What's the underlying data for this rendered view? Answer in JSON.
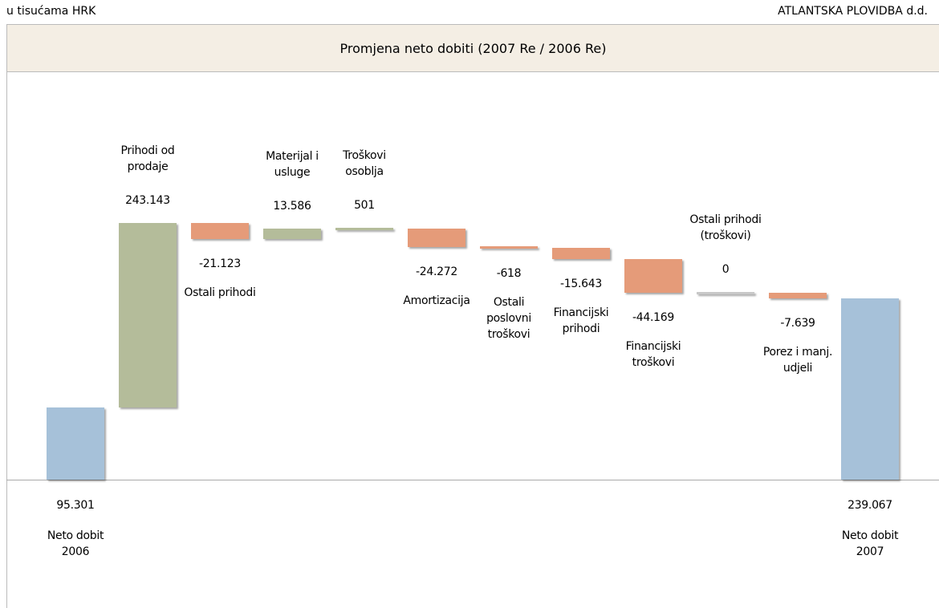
{
  "header": {
    "left": "u tisućama HRK",
    "right": "ATLANTSKA PLOVIDBA d.d."
  },
  "chart_data": {
    "type": "waterfall",
    "title": "Promjena neto dobiti (2007 Re / 2006 Re)",
    "categories": [
      "Neto dobit\n2006",
      "Prihodi od\nprodaje",
      "Ostali prihodi",
      "Materijal i\nusluge",
      "Troškovi\nosoblja",
      "Amortizacija",
      "Ostali\nposlovni\ntroškovi",
      "Financijski\nprihodi",
      "Financijski\ntroškovi",
      "Ostali prihodi\n(troškovi)",
      "Porez i manj.\nudjeli",
      "Neto dobit\n2007"
    ],
    "values": [
      95301,
      243143,
      -21123,
      13586,
      501,
      -24272,
      -618,
      -15643,
      -44169,
      0,
      -7639,
      239067
    ],
    "value_labels": [
      "95.301",
      "243.143",
      "-21.123",
      "13.586",
      "501",
      "-24.272",
      "-618",
      "-15.643",
      "-44.169",
      "0",
      "-7.639",
      "239.067"
    ],
    "colors": [
      "#a6c1d9",
      "#b4bc9a",
      "#e59b79",
      "#b4bc9a",
      "#b4bc9a",
      "#e59b79",
      "#e59b79",
      "#e59b79",
      "#e59b79",
      "#c8c8c8",
      "#e59b79",
      "#a6c1d9"
    ],
    "totals": [
      "Neto dobit\n2006",
      "Neto dobit\n2007"
    ]
  }
}
